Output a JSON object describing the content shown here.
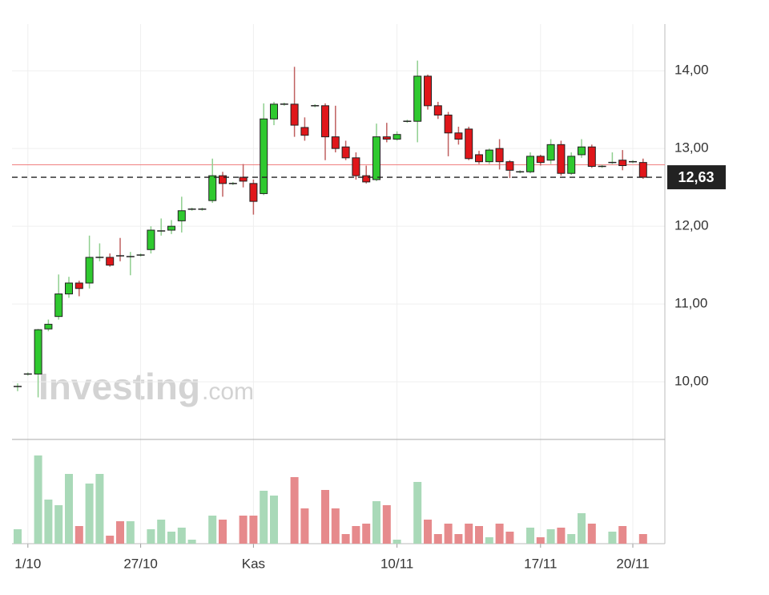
{
  "chart_data": {
    "type": "candlestick",
    "categories": [
      null,
      "1/10",
      null,
      null,
      null,
      null,
      null,
      null,
      null,
      null,
      null,
      null,
      "27/10",
      null,
      null,
      null,
      null,
      null,
      null,
      null,
      null,
      null,
      null,
      "Kas",
      null,
      null,
      null,
      null,
      null,
      null,
      null,
      null,
      null,
      null,
      null,
      null,
      null,
      "10/11",
      null,
      null,
      null,
      null,
      null,
      null,
      null,
      null,
      null,
      null,
      null,
      null,
      null,
      "17/11",
      null,
      null,
      null,
      null,
      null,
      null,
      null,
      null,
      "20/11",
      null
    ],
    "open": [
      9.93,
      10.1,
      10.1,
      10.68,
      10.84,
      11.13,
      11.27,
      11.27,
      11.6,
      11.6,
      11.62,
      11.6,
      11.63,
      11.7,
      11.93,
      11.95,
      12.07,
      12.22,
      12.22,
      12.33,
      12.65,
      12.55,
      12.63,
      12.55,
      12.42,
      13.38,
      13.57,
      13.57,
      13.27,
      13.55,
      13.55,
      13.15,
      13.02,
      12.88,
      12.65,
      12.6,
      13.15,
      13.12,
      13.35,
      13.35,
      13.93,
      13.55,
      13.43,
      13.2,
      13.25,
      12.92,
      12.83,
      13.0,
      12.83,
      12.7,
      12.7,
      12.9,
      12.85,
      13.05,
      12.68,
      12.92,
      13.02,
      12.77,
      12.82,
      12.85,
      12.83,
      12.82
    ],
    "high": [
      9.98,
      10.12,
      10.68,
      10.8,
      11.38,
      11.35,
      11.3,
      11.88,
      11.78,
      11.65,
      11.85,
      11.67,
      11.65,
      12.0,
      12.1,
      12.08,
      12.38,
      12.24,
      12.24,
      12.87,
      12.7,
      12.57,
      12.8,
      12.6,
      13.58,
      13.6,
      13.59,
      14.05,
      13.4,
      13.57,
      13.58,
      13.55,
      13.1,
      12.95,
      12.78,
      13.32,
      13.33,
      13.22,
      13.37,
      14.13,
      13.95,
      13.6,
      13.47,
      13.28,
      13.28,
      12.97,
      13.0,
      13.12,
      12.85,
      12.72,
      12.95,
      12.92,
      13.12,
      13.1,
      12.95,
      13.12,
      13.05,
      12.79,
      12.95,
      12.98,
      12.85,
      12.87
    ],
    "low": [
      9.88,
      10.08,
      9.8,
      10.65,
      10.8,
      11.08,
      11.1,
      11.2,
      11.55,
      11.48,
      11.55,
      11.37,
      11.61,
      11.65,
      11.88,
      11.9,
      11.92,
      12.2,
      12.2,
      12.3,
      12.38,
      12.53,
      12.5,
      12.15,
      12.4,
      13.3,
      13.55,
      13.15,
      13.1,
      13.53,
      12.85,
      12.95,
      12.85,
      12.6,
      12.55,
      12.58,
      13.08,
      13.1,
      13.33,
      13.08,
      13.5,
      13.38,
      12.9,
      13.05,
      12.85,
      12.8,
      12.8,
      12.73,
      12.62,
      12.68,
      12.68,
      12.78,
      12.8,
      12.65,
      12.66,
      12.88,
      12.75,
      12.75,
      12.8,
      12.72,
      12.81,
      12.61
    ],
    "close": [
      9.94,
      10.1,
      10.67,
      10.74,
      11.13,
      11.27,
      11.2,
      11.6,
      11.6,
      11.5,
      11.61,
      11.61,
      11.63,
      11.95,
      11.94,
      12.0,
      12.2,
      12.22,
      12.22,
      12.65,
      12.55,
      12.55,
      12.58,
      12.32,
      13.38,
      13.57,
      13.57,
      13.3,
      13.17,
      13.55,
      13.15,
      13.0,
      12.88,
      12.65,
      12.57,
      13.15,
      13.12,
      13.18,
      13.35,
      13.93,
      13.55,
      13.43,
      13.2,
      13.12,
      12.87,
      12.83,
      12.98,
      12.83,
      12.72,
      12.7,
      12.9,
      12.82,
      13.05,
      12.68,
      12.9,
      13.02,
      12.77,
      12.77,
      12.82,
      12.78,
      12.83,
      12.63
    ],
    "volume": [
      18,
      0,
      110,
      55,
      48,
      87,
      22,
      75,
      87,
      10,
      28,
      28,
      0,
      18,
      30,
      15,
      20,
      5,
      0,
      35,
      30,
      0,
      35,
      35,
      66,
      60,
      0,
      83,
      44,
      0,
      67,
      44,
      12,
      22,
      25,
      53,
      48,
      5,
      0,
      77,
      30,
      12,
      25,
      12,
      25,
      22,
      8,
      25,
      15,
      0,
      20,
      8,
      18,
      20,
      12,
      38,
      25,
      0,
      15,
      22,
      0,
      12
    ],
    "up_color": "#2fc92f",
    "down_color": "#e0161a",
    "volume_up_color": "#a9d9b8",
    "volume_down_color": "#e68a8c",
    "ylim": [
      9.29,
      14.6
    ],
    "yticks": [
      {
        "value": 10,
        "label": "10,00"
      },
      {
        "value": 11,
        "label": "11,00"
      },
      {
        "value": 12,
        "label": "12,00"
      },
      {
        "value": 13,
        "label": "13,00"
      },
      {
        "value": 14,
        "label": "14,00"
      }
    ],
    "volume_lim": [
      0,
      120
    ],
    "last_price": {
      "value": 12.63,
      "label": "12,63"
    },
    "reference_line": 12.79,
    "grid": true,
    "watermark": {
      "brand": "Investing",
      "suffix": ".com"
    }
  }
}
